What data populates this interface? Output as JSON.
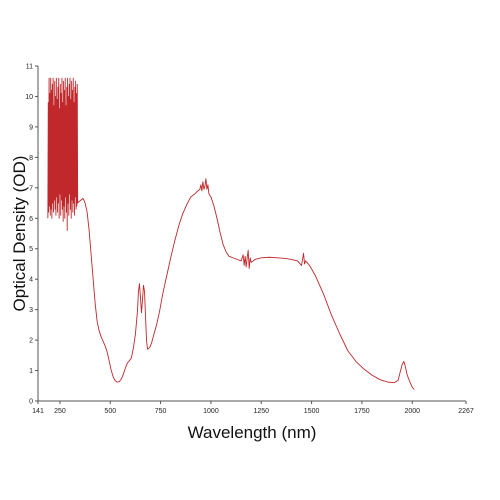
{
  "chart_data": {
    "type": "line",
    "title": "",
    "xlabel": "Wavelength (nm)",
    "ylabel": "Optical Density (OD)",
    "xlim": [
      141,
      2267
    ],
    "ylim": [
      0,
      11
    ],
    "x_ticks": [
      141,
      250,
      500,
      750,
      1000,
      1250,
      1500,
      1750,
      2000,
      2267
    ],
    "y_ticks": [
      0,
      1,
      2,
      3,
      4,
      5,
      6,
      7,
      8,
      9,
      10,
      11
    ],
    "grid": false,
    "legend": "none",
    "colors": {
      "line": "#c0282b",
      "axis": "#555555"
    },
    "series": [
      {
        "points": [
          [
            190,
            6.0
          ],
          [
            192,
            9.8
          ],
          [
            194,
            6.2
          ],
          [
            196,
            10.6
          ],
          [
            198,
            6.4
          ],
          [
            200,
            10.1
          ],
          [
            202,
            6.1
          ],
          [
            204,
            10.6
          ],
          [
            206,
            6.3
          ],
          [
            208,
            10.2
          ],
          [
            210,
            6.0
          ],
          [
            212,
            10.4
          ],
          [
            214,
            6.5
          ],
          [
            216,
            10.6
          ],
          [
            218,
            6.2
          ],
          [
            220,
            9.7
          ],
          [
            222,
            6.6
          ],
          [
            224,
            10.5
          ],
          [
            226,
            6.3
          ],
          [
            228,
            10.0
          ],
          [
            230,
            6.1
          ],
          [
            232,
            10.6
          ],
          [
            234,
            6.7
          ],
          [
            236,
            9.9
          ],
          [
            238,
            6.2
          ],
          [
            240,
            10.3
          ],
          [
            242,
            6.5
          ],
          [
            244,
            10.6
          ],
          [
            246,
            6.0
          ],
          [
            248,
            9.6
          ],
          [
            250,
            6.8
          ],
          [
            252,
            10.4
          ],
          [
            254,
            6.1
          ],
          [
            256,
            10.1
          ],
          [
            258,
            6.6
          ],
          [
            260,
            10.6
          ],
          [
            262,
            6.3
          ],
          [
            264,
            9.8
          ],
          [
            266,
            5.9
          ],
          [
            268,
            10.5
          ],
          [
            270,
            6.4
          ],
          [
            272,
            10.2
          ],
          [
            274,
            6.0
          ],
          [
            276,
            10.6
          ],
          [
            278,
            6.7
          ],
          [
            280,
            9.7
          ],
          [
            282,
            6.2
          ],
          [
            284,
            10.3
          ],
          [
            286,
            5.6
          ],
          [
            288,
            10.6
          ],
          [
            290,
            6.5
          ],
          [
            292,
            10.0
          ],
          [
            294,
            6.1
          ],
          [
            296,
            10.4
          ],
          [
            298,
            6.8
          ],
          [
            300,
            10.6
          ],
          [
            302,
            6.3
          ],
          [
            304,
            9.9
          ],
          [
            306,
            6.0
          ],
          [
            308,
            10.5
          ],
          [
            310,
            6.6
          ],
          [
            312,
            10.2
          ],
          [
            314,
            6.2
          ],
          [
            316,
            10.6
          ],
          [
            318,
            6.5
          ],
          [
            320,
            9.8
          ],
          [
            322,
            6.1
          ],
          [
            324,
            10.3
          ],
          [
            326,
            6.7
          ],
          [
            328,
            10.5
          ],
          [
            330,
            6.3
          ],
          [
            332,
            10.1
          ],
          [
            334,
            6.4
          ],
          [
            336,
            10.4
          ],
          [
            338,
            6.5
          ],
          [
            345,
            6.55
          ],
          [
            355,
            6.6
          ],
          [
            365,
            6.65
          ],
          [
            375,
            6.5
          ],
          [
            385,
            6.2
          ],
          [
            395,
            5.6
          ],
          [
            405,
            4.8
          ],
          [
            415,
            4.0
          ],
          [
            425,
            3.2
          ],
          [
            435,
            2.6
          ],
          [
            445,
            2.3
          ],
          [
            455,
            2.1
          ],
          [
            465,
            1.95
          ],
          [
            475,
            1.8
          ],
          [
            485,
            1.6
          ],
          [
            495,
            1.3
          ],
          [
            505,
            1.0
          ],
          [
            515,
            0.78
          ],
          [
            525,
            0.66
          ],
          [
            535,
            0.62
          ],
          [
            545,
            0.64
          ],
          [
            555,
            0.72
          ],
          [
            565,
            0.88
          ],
          [
            575,
            1.08
          ],
          [
            585,
            1.25
          ],
          [
            595,
            1.32
          ],
          [
            605,
            1.42
          ],
          [
            615,
            1.75
          ],
          [
            625,
            2.2
          ],
          [
            635,
            2.95
          ],
          [
            640,
            3.6
          ],
          [
            645,
            3.85
          ],
          [
            650,
            3.4
          ],
          [
            655,
            2.9
          ],
          [
            660,
            3.3
          ],
          [
            665,
            3.8
          ],
          [
            670,
            3.6
          ],
          [
            675,
            2.8
          ],
          [
            680,
            2.0
          ],
          [
            685,
            1.7
          ],
          [
            695,
            1.75
          ],
          [
            705,
            1.9
          ],
          [
            715,
            2.15
          ],
          [
            730,
            2.5
          ],
          [
            745,
            2.95
          ],
          [
            760,
            3.5
          ],
          [
            780,
            4.1
          ],
          [
            800,
            4.7
          ],
          [
            820,
            5.25
          ],
          [
            840,
            5.75
          ],
          [
            860,
            6.15
          ],
          [
            880,
            6.45
          ],
          [
            900,
            6.7
          ],
          [
            920,
            6.8
          ],
          [
            935,
            6.9
          ],
          [
            945,
            6.95
          ],
          [
            950,
            7.1
          ],
          [
            955,
            6.9
          ],
          [
            960,
            7.2
          ],
          [
            965,
            6.95
          ],
          [
            970,
            7.05
          ],
          [
            975,
            7.3
          ],
          [
            980,
            6.95
          ],
          [
            985,
            7.1
          ],
          [
            990,
            6.8
          ],
          [
            1000,
            6.7
          ],
          [
            1015,
            6.4
          ],
          [
            1030,
            6.0
          ],
          [
            1045,
            5.55
          ],
          [
            1060,
            5.15
          ],
          [
            1075,
            4.9
          ],
          [
            1090,
            4.75
          ],
          [
            1110,
            4.7
          ],
          [
            1130,
            4.65
          ],
          [
            1150,
            4.6
          ],
          [
            1160,
            4.8
          ],
          [
            1165,
            4.45
          ],
          [
            1170,
            4.75
          ],
          [
            1175,
            4.4
          ],
          [
            1180,
            4.7
          ],
          [
            1185,
            4.95
          ],
          [
            1190,
            4.35
          ],
          [
            1195,
            4.7
          ],
          [
            1200,
            4.55
          ],
          [
            1220,
            4.65
          ],
          [
            1250,
            4.7
          ],
          [
            1290,
            4.72
          ],
          [
            1330,
            4.7
          ],
          [
            1370,
            4.68
          ],
          [
            1400,
            4.65
          ],
          [
            1430,
            4.6
          ],
          [
            1450,
            4.45
          ],
          [
            1460,
            4.85
          ],
          [
            1465,
            4.5
          ],
          [
            1470,
            4.6
          ],
          [
            1490,
            4.45
          ],
          [
            1520,
            4.1
          ],
          [
            1560,
            3.5
          ],
          [
            1600,
            2.8
          ],
          [
            1640,
            2.2
          ],
          [
            1680,
            1.65
          ],
          [
            1720,
            1.3
          ],
          [
            1760,
            1.05
          ],
          [
            1800,
            0.85
          ],
          [
            1840,
            0.7
          ],
          [
            1880,
            0.62
          ],
          [
            1910,
            0.6
          ],
          [
            1930,
            0.68
          ],
          [
            1940,
            0.95
          ],
          [
            1950,
            1.2
          ],
          [
            1958,
            1.3
          ],
          [
            1965,
            1.15
          ],
          [
            1975,
            0.85
          ],
          [
            1990,
            0.6
          ],
          [
            2000,
            0.45
          ],
          [
            2010,
            0.38
          ]
        ]
      }
    ]
  }
}
